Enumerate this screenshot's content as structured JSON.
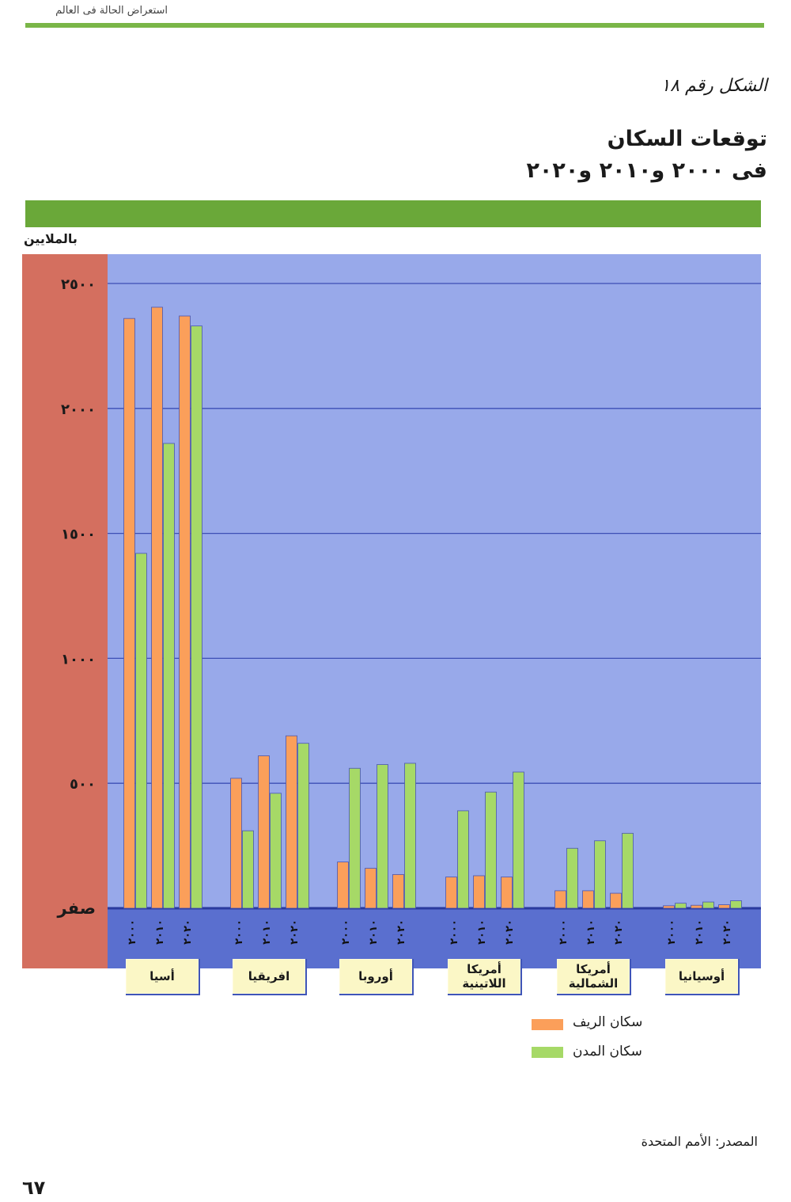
{
  "header": {
    "running_title": "استعراض الحالة فى العالم"
  },
  "figure": {
    "label": "الشكل رقم ١٨",
    "title_line1": "توقعات السكان",
    "title_line2": "فى ٢٠٠٠ و٢٠١٠ و٢٠٢٠",
    "unit": "بالملايين",
    "source": "المصدر: الأمم المتحدة"
  },
  "page_number": "٦٧",
  "colors": {
    "rural": "#fb9f5a",
    "urban": "#a6d967",
    "plot_bg": "#98a9ea",
    "axis_bg": "#d46f5f",
    "gridline": "#3d4fb5",
    "label_box": "#fbf7c6"
  },
  "chart_data": {
    "type": "bar",
    "ylabel": "بالملايين",
    "ylim": [
      0,
      2500
    ],
    "yticks": [
      0,
      500,
      1000,
      1500,
      2000,
      2500
    ],
    "ytick_labels": [
      "صفر",
      "٥٠٠",
      "١٠٠٠",
      "١٥٠٠",
      "٢٠٠٠",
      "٢٥٠٠"
    ],
    "grid": true,
    "years": [
      "٢٠٠٠",
      "٢٠١٠",
      "٢٠٢٠"
    ],
    "categories": [
      "أسيا",
      "افريقيا",
      "أوروبا",
      "أمريكا\nاللاتينية",
      "أمريكا\nالشمالية",
      "أوسيانيا"
    ],
    "series": [
      {
        "name": "سكان الريف",
        "color": "#fb9f5a",
        "values": [
          [
            2360,
            2405,
            2370
          ],
          [
            520,
            610,
            690
          ],
          [
            185,
            160,
            135
          ],
          [
            125,
            130,
            125
          ],
          [
            70,
            70,
            60
          ],
          [
            10,
            12,
            14
          ]
        ]
      },
      {
        "name": "سكان المدن",
        "color": "#a6d967",
        "values": [
          [
            1420,
            1860,
            2330
          ],
          [
            310,
            460,
            660
          ],
          [
            560,
            575,
            580
          ],
          [
            390,
            465,
            545
          ],
          [
            240,
            270,
            300
          ],
          [
            20,
            25,
            30
          ]
        ]
      }
    ],
    "legend": "bottom-right"
  }
}
